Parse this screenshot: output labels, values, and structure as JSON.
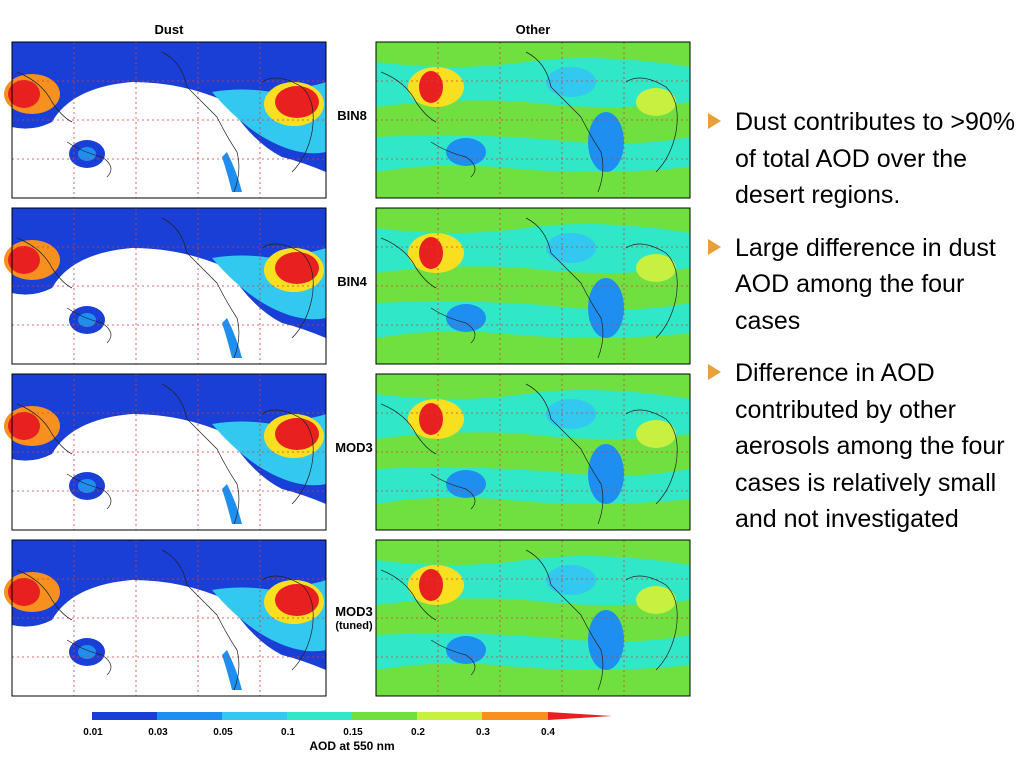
{
  "columns": [
    "Dust",
    "Other"
  ],
  "rows": [
    [
      "BIN8"
    ],
    [
      "BIN4"
    ],
    [
      "MOD3"
    ],
    [
      "MOD3",
      "(tuned)"
    ]
  ],
  "colorbar": {
    "ticks": [
      "0.01",
      "0.03",
      "0.05",
      "0.1",
      "0.15",
      "0.2",
      "0.3",
      "0.4"
    ],
    "title": "AOD at 550 nm"
  },
  "bullets": [
    "Dust contributes to >90% of total AOD over the desert regions.",
    "Large difference in dust AOD among the four cases",
    "Difference in AOD contributed by other aerosols among the four cases is relatively small and not investigated"
  ]
}
